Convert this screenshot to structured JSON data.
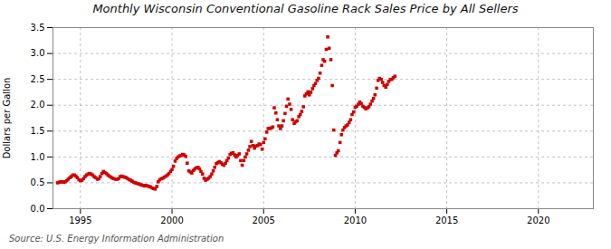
{
  "chart_data": {
    "type": "scatter",
    "title": "Monthly Wisconsin Conventional Gasoline Rack Sales Price by All Sellers",
    "ylabel": "Dollars per Gallon",
    "annotations": [
      "Source: U.S. Energy Information Administration"
    ],
    "color": "#cc0000",
    "marker": "square",
    "grid": true,
    "xlim": [
      1993.5,
      2023.0
    ],
    "xticks": [
      1995,
      2000,
      2005,
      2010,
      2015,
      2020
    ],
    "ylim": [
      0.0,
      3.5
    ],
    "yticks": [
      {
        "value": 0.0,
        "label": "0.0"
      },
      0.5,
      {
        "value": 1.0,
        "label": "1.0"
      },
      1.5,
      {
        "value": 2.0,
        "label": "2.0"
      },
      2.5,
      {
        "value": 3.0,
        "label": "3.0"
      },
      3.5
    ],
    "x": [
      1993.75,
      1993.83,
      1993.92,
      1994.0,
      1994.08,
      1994.17,
      1994.25,
      1994.33,
      1994.42,
      1994.5,
      1994.58,
      1994.67,
      1994.75,
      1994.83,
      1994.92,
      1995.0,
      1995.08,
      1995.17,
      1995.25,
      1995.33,
      1995.42,
      1995.5,
      1995.58,
      1995.67,
      1995.75,
      1995.83,
      1995.92,
      1996.0,
      1996.08,
      1996.17,
      1996.25,
      1996.33,
      1996.42,
      1996.5,
      1996.58,
      1996.67,
      1996.75,
      1996.83,
      1996.92,
      1997.0,
      1997.08,
      1997.17,
      1997.25,
      1997.33,
      1997.42,
      1997.5,
      1997.58,
      1997.67,
      1997.75,
      1997.83,
      1997.92,
      1998.0,
      1998.08,
      1998.17,
      1998.25,
      1998.33,
      1998.42,
      1998.5,
      1998.58,
      1998.67,
      1998.75,
      1998.83,
      1998.92,
      1999.0,
      1999.08,
      1999.17,
      1999.25,
      1999.33,
      1999.42,
      1999.5,
      1999.58,
      1999.67,
      1999.75,
      1999.83,
      1999.92,
      2000.0,
      2000.08,
      2000.17,
      2000.25,
      2000.33,
      2000.42,
      2000.5,
      2000.58,
      2000.67,
      2000.75,
      2000.83,
      2000.92,
      2001.0,
      2001.08,
      2001.17,
      2001.25,
      2001.33,
      2001.42,
      2001.5,
      2001.58,
      2001.67,
      2001.75,
      2001.83,
      2001.92,
      2002.0,
      2002.08,
      2002.17,
      2002.25,
      2002.33,
      2002.42,
      2002.5,
      2002.58,
      2002.67,
      2002.75,
      2002.83,
      2002.92,
      2003.0,
      2003.08,
      2003.17,
      2003.25,
      2003.33,
      2003.42,
      2003.5,
      2003.58,
      2003.67,
      2003.75,
      2003.83,
      2003.92,
      2004.0,
      2004.08,
      2004.17,
      2004.25,
      2004.33,
      2004.42,
      2004.5,
      2004.58,
      2004.67,
      2004.75,
      2004.83,
      2004.92,
      2005.0,
      2005.08,
      2005.17,
      2005.25,
      2005.33,
      2005.42,
      2005.5,
      2005.58,
      2005.67,
      2005.75,
      2005.83,
      2005.92,
      2006.0,
      2006.08,
      2006.17,
      2006.25,
      2006.33,
      2006.42,
      2006.5,
      2006.58,
      2006.67,
      2006.75,
      2006.83,
      2006.92,
      2007.0,
      2007.08,
      2007.17,
      2007.25,
      2007.33,
      2007.42,
      2007.5,
      2007.58,
      2007.67,
      2007.75,
      2007.83,
      2007.92,
      2008.0,
      2008.08,
      2008.17,
      2008.25,
      2008.33,
      2008.42,
      2008.5,
      2008.58,
      2008.67,
      2008.75,
      2008.83,
      2008.92,
      2009.0,
      2009.08,
      2009.17,
      2009.25,
      2009.33,
      2009.42,
      2009.5,
      2009.58,
      2009.67,
      2009.75,
      2009.83,
      2009.92,
      2010.0,
      2010.08,
      2010.17,
      2010.25,
      2010.33,
      2010.42,
      2010.5,
      2010.58,
      2010.67,
      2010.75,
      2010.83,
      2010.92,
      2011.0,
      2011.08,
      2011.17,
      2011.25,
      2011.33,
      2011.42,
      2011.5,
      2011.58,
      2011.67,
      2011.75,
      2011.83,
      2011.92,
      2012.0,
      2012.08,
      2012.17
    ],
    "values": [
      0.5,
      0.51,
      0.52,
      0.52,
      0.51,
      0.52,
      0.54,
      0.57,
      0.6,
      0.62,
      0.65,
      0.65,
      0.63,
      0.6,
      0.56,
      0.54,
      0.55,
      0.58,
      0.62,
      0.65,
      0.67,
      0.68,
      0.67,
      0.65,
      0.62,
      0.6,
      0.57,
      0.58,
      0.62,
      0.68,
      0.72,
      0.7,
      0.68,
      0.65,
      0.63,
      0.61,
      0.59,
      0.58,
      0.57,
      0.57,
      0.58,
      0.62,
      0.63,
      0.62,
      0.61,
      0.6,
      0.58,
      0.56,
      0.55,
      0.53,
      0.51,
      0.5,
      0.49,
      0.48,
      0.47,
      0.46,
      0.45,
      0.44,
      0.45,
      0.44,
      0.43,
      0.42,
      0.4,
      0.39,
      0.38,
      0.43,
      0.52,
      0.56,
      0.58,
      0.59,
      0.61,
      0.63,
      0.65,
      0.68,
      0.72,
      0.76,
      0.82,
      0.92,
      0.97,
      1.0,
      1.02,
      1.03,
      1.05,
      1.04,
      1.01,
      0.88,
      0.73,
      0.71,
      0.69,
      0.74,
      0.77,
      0.79,
      0.8,
      0.77,
      0.72,
      0.67,
      0.59,
      0.55,
      0.57,
      0.59,
      0.62,
      0.67,
      0.73,
      0.8,
      0.87,
      0.89,
      0.91,
      0.89,
      0.86,
      0.84,
      0.88,
      0.93,
      0.98,
      1.05,
      1.07,
      1.08,
      1.04,
      1.0,
      1.03,
      1.06,
      0.93,
      0.84,
      0.93,
      1.0,
      1.06,
      1.13,
      1.2,
      1.3,
      1.22,
      1.17,
      1.21,
      1.22,
      1.25,
      1.24,
      1.15,
      1.28,
      1.35,
      1.48,
      1.55,
      1.55,
      1.56,
      1.58,
      1.95,
      1.85,
      1.72,
      1.6,
      1.55,
      1.6,
      1.7,
      1.84,
      1.98,
      2.12,
      2.02,
      1.92,
      1.72,
      1.65,
      1.68,
      1.7,
      1.78,
      1.82,
      1.88,
      1.97,
      2.18,
      2.22,
      2.26,
      2.2,
      2.25,
      2.32,
      2.38,
      2.42,
      2.48,
      2.52,
      2.62,
      2.77,
      2.88,
      2.85,
      3.08,
      3.32,
      3.1,
      2.88,
      2.38,
      1.52,
      1.03,
      1.08,
      1.12,
      1.28,
      1.43,
      1.52,
      1.57,
      1.6,
      1.62,
      1.67,
      1.72,
      1.82,
      1.87,
      1.96,
      1.98,
      2.02,
      2.06,
      2.03,
      1.98,
      1.96,
      1.93,
      1.95,
      1.97,
      2.02,
      2.08,
      2.13,
      2.2,
      2.33,
      2.48,
      2.52,
      2.5,
      2.44,
      2.38,
      2.35,
      2.4,
      2.46,
      2.5,
      2.5,
      2.53,
      2.56
    ]
  }
}
